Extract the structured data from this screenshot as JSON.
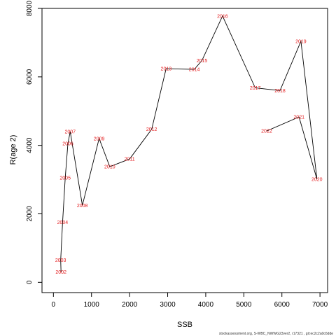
{
  "chart_data": {
    "type": "line",
    "xlabel": "SSB",
    "ylabel": "R(age 2)",
    "xlim": [
      -300,
      7200
    ],
    "ylim": [
      -300,
      8000
    ],
    "xticks": [
      0,
      1000,
      2000,
      3000,
      4000,
      5000,
      6000,
      7000
    ],
    "yticks": [
      0,
      2000,
      4000,
      6000,
      8000
    ],
    "grid": false,
    "line_color": "#000000",
    "label_color": "#e31a1c",
    "points": [
      {
        "year": "2002",
        "x": 200,
        "y": 300
      },
      {
        "year": "2003",
        "x": 190,
        "y": 650
      },
      {
        "year": "2004",
        "x": 240,
        "y": 1750
      },
      {
        "year": "2005",
        "x": 310,
        "y": 3050
      },
      {
        "year": "2006",
        "x": 380,
        "y": 4050
      },
      {
        "year": "2007",
        "x": 440,
        "y": 4400
      },
      {
        "year": "2008",
        "x": 760,
        "y": 2250
      },
      {
        "year": "2009",
        "x": 1200,
        "y": 4200
      },
      {
        "year": "2010",
        "x": 1480,
        "y": 3380
      },
      {
        "year": "2011",
        "x": 2000,
        "y": 3600
      },
      {
        "year": "2012",
        "x": 2580,
        "y": 4470
      },
      {
        "year": "2013",
        "x": 2960,
        "y": 6240
      },
      {
        "year": "2014",
        "x": 3700,
        "y": 6220
      },
      {
        "year": "2015",
        "x": 3900,
        "y": 6480
      },
      {
        "year": "2016",
        "x": 4440,
        "y": 7780
      },
      {
        "year": "2017",
        "x": 5300,
        "y": 5680
      },
      {
        "year": "2018",
        "x": 5950,
        "y": 5600
      },
      {
        "year": "2019",
        "x": 6500,
        "y": 7040
      },
      {
        "year": "2020",
        "x": 6920,
        "y": 3010
      },
      {
        "year": "2021",
        "x": 6450,
        "y": 4830
      },
      {
        "year": "2022",
        "x": 5600,
        "y": 4420
      }
    ]
  },
  "footer": "stockassessment.org, S-WBC_NWWG23ver2, r17321 , git:ec2c2a0c6dde"
}
